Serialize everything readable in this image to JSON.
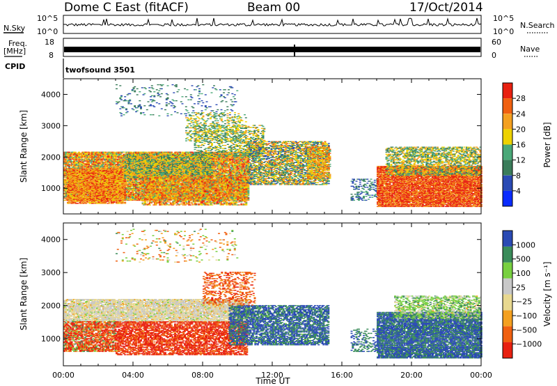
{
  "header": {
    "station": "Dome C East (fitACF)",
    "beam": "Beam 00",
    "date": "17/Oct/2014"
  },
  "top_panels": {
    "nsky_label": "N.Sky",
    "nsearch_label": "N.Search",
    "nsky_ticks": [
      "10^5",
      "10^0"
    ],
    "nsky_right_ticks": [
      "10^5",
      "10^0"
    ],
    "freq_label_line1": "Freq.",
    "freq_label_line2": "[MHz]",
    "freq_ticks": [
      "18",
      "8"
    ],
    "nave_label": "Nave",
    "nave_ticks": [
      "60",
      "0"
    ],
    "cpid_label": "CPID",
    "cpid_value": "twofsound 3501"
  },
  "colors": {
    "power_scale": [
      "#0a2bff",
      "#2a4ab4",
      "#3a7c5a",
      "#4aa878",
      "#eed200",
      "#f4a020",
      "#f06010",
      "#e82010"
    ],
    "velocity_scale": [
      "#e82010",
      "#f06010",
      "#f4a020",
      "#e8d890",
      "#c8c8c8",
      "#78d040",
      "#3a8c5a",
      "#2a4ab4"
    ]
  },
  "chart_data": [
    {
      "type": "heatmap",
      "panel": "power",
      "ylabel": "Slant Range [km]",
      "yticks": [
        "1000",
        "2000",
        "3000",
        "4000"
      ],
      "ylim": [
        180,
        4500
      ],
      "xlim": [
        0,
        24
      ],
      "colorbar_label": "Power [dB]",
      "colorbar_ticks": [
        "4",
        "8",
        "12",
        "16",
        "20",
        "24",
        "28"
      ],
      "clim": [
        0,
        32
      ],
      "regions": [
        {
          "t": [
            0.0,
            10.6
          ],
          "r": [
            600,
            2150
          ],
          "dens": 0.85,
          "val": [
            12,
            30
          ]
        },
        {
          "t": [
            0.2,
            3.5
          ],
          "r": [
            500,
            1600
          ],
          "dens": 0.8,
          "val": [
            18,
            30
          ]
        },
        {
          "t": [
            3.5,
            8.5
          ],
          "r": [
            1300,
            2100
          ],
          "dens": 0.75,
          "val": [
            8,
            24
          ]
        },
        {
          "t": [
            4.5,
            10.5
          ],
          "r": [
            450,
            1400
          ],
          "dens": 0.6,
          "val": [
            14,
            30
          ]
        },
        {
          "t": [
            7.5,
            11.5
          ],
          "r": [
            2000,
            3000
          ],
          "dens": 0.35,
          "val": [
            8,
            22
          ]
        },
        {
          "t": [
            10.5,
            15.2
          ],
          "r": [
            1100,
            2500
          ],
          "dens": 0.65,
          "val": [
            6,
            26
          ]
        },
        {
          "t": [
            14.0,
            15.3
          ],
          "r": [
            1300,
            2300
          ],
          "dens": 0.6,
          "val": [
            14,
            28
          ]
        },
        {
          "t": [
            16.5,
            18.0
          ],
          "r": [
            600,
            1300
          ],
          "dens": 0.3,
          "val": [
            4,
            14
          ]
        },
        {
          "t": [
            18.0,
            24.0
          ],
          "r": [
            400,
            1700
          ],
          "dens": 0.9,
          "val": [
            22,
            32
          ]
        },
        {
          "t": [
            18.5,
            24.0
          ],
          "r": [
            1400,
            2300
          ],
          "dens": 0.55,
          "val": [
            8,
            24
          ]
        },
        {
          "t": [
            3.0,
            10.0
          ],
          "r": [
            3300,
            4300
          ],
          "dens": 0.08,
          "val": [
            4,
            14
          ]
        },
        {
          "t": [
            7.0,
            10.5
          ],
          "r": [
            2500,
            3400
          ],
          "dens": 0.25,
          "val": [
            10,
            22
          ]
        }
      ]
    },
    {
      "type": "heatmap",
      "panel": "velocity",
      "ylabel": "Slant Range [km]",
      "yticks": [
        "1000",
        "2000",
        "3000",
        "4000"
      ],
      "ylim": [
        180,
        4500
      ],
      "xlim": [
        0,
        24
      ],
      "xlabel": "Time UT",
      "xticks": [
        "00:00",
        "04:00",
        "08:00",
        "12:00",
        "16:00",
        "20:00",
        "00:00"
      ],
      "colorbar_label": "Velocity [m s⁻¹]",
      "colorbar_ticks": [
        "1000",
        "500",
        "100",
        "25",
        "−25",
        "−100",
        "−500",
        "−1000"
      ],
      "regions": [
        {
          "t": [
            0.0,
            10.6
          ],
          "r": [
            1500,
            2200
          ],
          "dens": 0.8,
          "val": [
            -25,
            25
          ]
        },
        {
          "t": [
            0.0,
            3.0
          ],
          "r": [
            600,
            1500
          ],
          "dens": 0.75,
          "val": [
            -600,
            150
          ]
        },
        {
          "t": [
            3.0,
            10.5
          ],
          "r": [
            500,
            1500
          ],
          "dens": 0.65,
          "val": [
            -700,
            -80
          ]
        },
        {
          "t": [
            9.5,
            15.2
          ],
          "r": [
            800,
            2000
          ],
          "dens": 0.65,
          "val": [
            80,
            600
          ]
        },
        {
          "t": [
            8.0,
            11.0
          ],
          "r": [
            2000,
            3000
          ],
          "dens": 0.3,
          "val": [
            -400,
            -50
          ]
        },
        {
          "t": [
            18.0,
            24.0
          ],
          "r": [
            400,
            1800
          ],
          "dens": 0.85,
          "val": [
            100,
            600
          ]
        },
        {
          "t": [
            19.0,
            24.0
          ],
          "r": [
            1600,
            2300
          ],
          "dens": 0.5,
          "val": [
            -25,
            120
          ]
        },
        {
          "t": [
            16.5,
            18.0
          ],
          "r": [
            600,
            1300
          ],
          "dens": 0.25,
          "val": [
            100,
            500
          ]
        },
        {
          "t": [
            3.0,
            10.0
          ],
          "r": [
            3300,
            4300
          ],
          "dens": 0.07,
          "val": [
            -200,
            100
          ]
        }
      ]
    }
  ]
}
